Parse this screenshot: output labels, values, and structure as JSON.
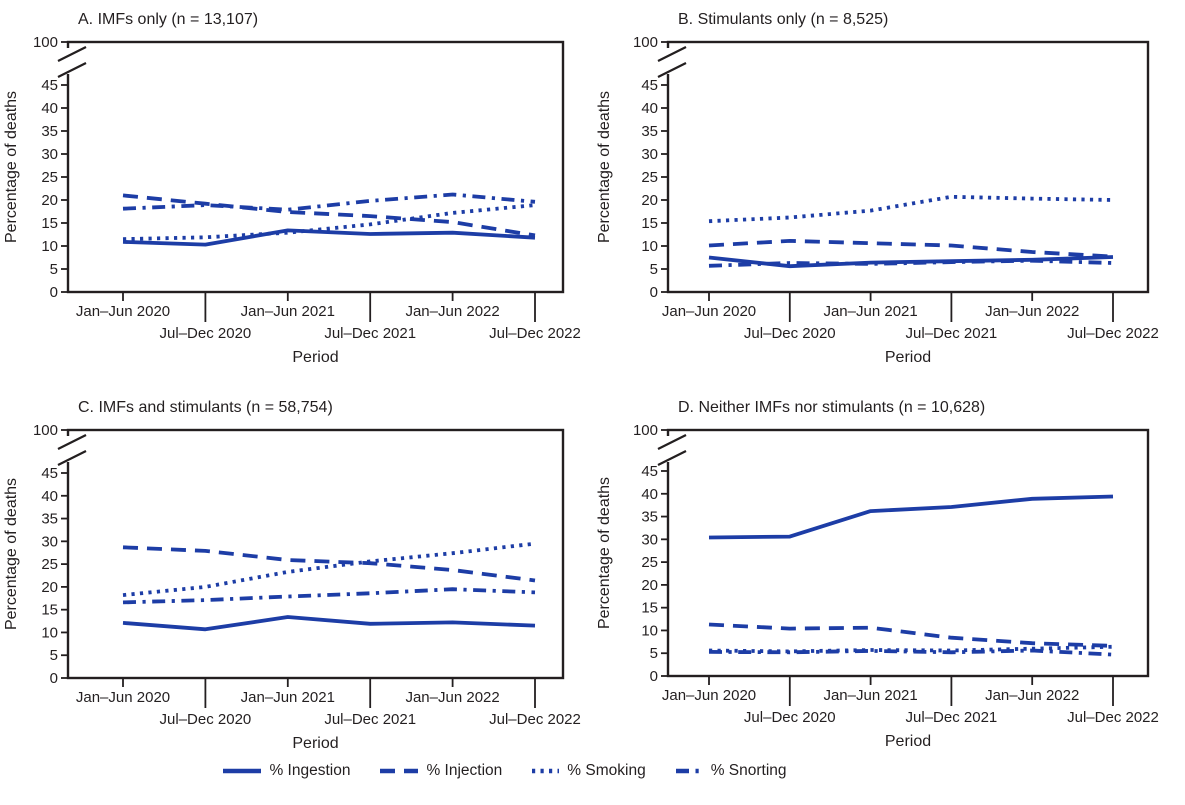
{
  "figure": {
    "description": "Four-panel line chart figure",
    "x_axis_label": "Period",
    "y_axis_label": "Percentage of deaths",
    "x_categories": [
      "Jan–Jun 2020",
      "Jul–Dec 2020",
      "Jan–Jun 2021",
      "Jul–Dec 2021",
      "Jan–Jun 2022",
      "Jul–Dec 2022"
    ],
    "y_ticks": [
      0,
      5,
      10,
      15,
      20,
      25,
      30,
      35,
      40,
      45
    ],
    "y_top_tick": "100",
    "y_axis_break": true
  },
  "chart_data": [
    {
      "type": "line",
      "title": "A. IMFs only (n = 13,107)",
      "xlabel": "Period",
      "ylabel": "Percentage of deaths",
      "x_categories": [
        "Jan–Jun 2020",
        "Jul–Dec 2020",
        "Jan–Jun 2021",
        "Jul–Dec 2021",
        "Jan–Jun 2022",
        "Jul–Dec 2022"
      ],
      "y_ticks": [
        0,
        5,
        10,
        15,
        20,
        25,
        30,
        35,
        40,
        45
      ],
      "y_top_tick": "100",
      "y_axis_break": true,
      "ylim": [
        0,
        100
      ],
      "series": [
        {
          "name": "% Ingestion",
          "style": "solid",
          "values": [
            10.9,
            10.3,
            13.4,
            12.6,
            12.9,
            11.8
          ]
        },
        {
          "name": "% Injection",
          "style": "dashed",
          "values": [
            21.0,
            19.2,
            17.4,
            16.5,
            15.2,
            12.3
          ]
        },
        {
          "name": "% Smoking",
          "style": "dotted",
          "values": [
            11.5,
            11.9,
            12.9,
            14.7,
            17.2,
            18.9
          ]
        },
        {
          "name": "% Snorting",
          "style": "dashdot",
          "values": [
            18.1,
            18.9,
            17.9,
            19.8,
            21.2,
            19.6
          ]
        }
      ]
    },
    {
      "type": "line",
      "title": "B. Stimulants only (n = 8,525)",
      "xlabel": "Period",
      "ylabel": "Percentage of deaths",
      "x_categories": [
        "Jan–Jun 2020",
        "Jul–Dec 2020",
        "Jan–Jun 2021",
        "Jul–Dec 2021",
        "Jan–Jun 2022",
        "Jul–Dec 2022"
      ],
      "y_ticks": [
        0,
        5,
        10,
        15,
        20,
        25,
        30,
        35,
        40,
        45
      ],
      "y_top_tick": "100",
      "y_axis_break": true,
      "ylim": [
        0,
        100
      ],
      "series": [
        {
          "name": "% Ingestion",
          "style": "solid",
          "values": [
            7.5,
            5.6,
            6.4,
            6.7,
            7.0,
            7.6
          ]
        },
        {
          "name": "% Injection",
          "style": "dashed",
          "values": [
            10.1,
            11.1,
            10.6,
            10.1,
            8.7,
            7.7
          ]
        },
        {
          "name": "% Smoking",
          "style": "dotted",
          "values": [
            15.4,
            16.2,
            17.7,
            20.7,
            20.3,
            20.0
          ]
        },
        {
          "name": "% Snorting",
          "style": "dashdot",
          "values": [
            5.7,
            6.3,
            6.1,
            6.5,
            6.8,
            6.3
          ]
        }
      ]
    },
    {
      "type": "line",
      "title": "C. IMFs and stimulants (n = 58,754)",
      "xlabel": "Period",
      "ylabel": "Percentage of deaths",
      "x_categories": [
        "Jan–Jun 2020",
        "Jul–Dec 2020",
        "Jan–Jun 2021",
        "Jul–Dec 2021",
        "Jan–Jun 2022",
        "Jul–Dec 2022"
      ],
      "y_ticks": [
        0,
        5,
        10,
        15,
        20,
        25,
        30,
        35,
        40,
        45
      ],
      "y_top_tick": "100",
      "y_axis_break": true,
      "ylim": [
        0,
        100
      ],
      "series": [
        {
          "name": "% Ingestion",
          "style": "solid",
          "values": [
            12.1,
            10.7,
            13.4,
            11.9,
            12.2,
            11.5
          ]
        },
        {
          "name": "% Injection",
          "style": "dashed",
          "values": [
            28.7,
            27.9,
            25.9,
            25.2,
            23.7,
            21.4
          ]
        },
        {
          "name": "% Smoking",
          "style": "dotted",
          "values": [
            18.2,
            20.0,
            23.3,
            25.6,
            27.4,
            29.5
          ]
        },
        {
          "name": "% Snorting",
          "style": "dashdot",
          "values": [
            16.6,
            17.1,
            17.9,
            18.6,
            19.5,
            18.8
          ]
        }
      ]
    },
    {
      "type": "line",
      "title": "D. Neither IMFs nor stimulants (n = 10,628)",
      "xlabel": "Period",
      "ylabel": "Percentage of deaths",
      "x_categories": [
        "Jan–Jun 2020",
        "Jul–Dec 2020",
        "Jan–Jun 2021",
        "Jul–Dec 2021",
        "Jan–Jun 2022",
        "Jul–Dec 2022"
      ],
      "y_ticks": [
        0,
        5,
        10,
        15,
        20,
        25,
        30,
        35,
        40,
        45
      ],
      "y_top_tick": "100",
      "y_axis_break": true,
      "ylim": [
        0,
        100
      ],
      "series": [
        {
          "name": "% Ingestion",
          "style": "solid",
          "values": [
            30.4,
            30.6,
            36.2,
            37.1,
            38.9,
            39.4
          ]
        },
        {
          "name": "% Injection",
          "style": "dashed",
          "values": [
            11.3,
            10.4,
            10.6,
            8.4,
            7.2,
            6.6
          ]
        },
        {
          "name": "% Smoking",
          "style": "dotted",
          "values": [
            5.6,
            5.4,
            5.7,
            5.6,
            6.0,
            6.4
          ]
        },
        {
          "name": "% Snorting",
          "style": "dashdot",
          "values": [
            5.3,
            5.2,
            5.5,
            5.2,
            5.6,
            4.7
          ]
        }
      ]
    }
  ],
  "legend": {
    "items": [
      {
        "label": "% Ingestion",
        "style": "solid"
      },
      {
        "label": "% Injection",
        "style": "dashed"
      },
      {
        "label": "% Smoking",
        "style": "dotted"
      },
      {
        "label": "% Snorting",
        "style": "dashdot"
      }
    ]
  },
  "colors": {
    "line_blue": "#1d3da6",
    "axis": "#231f20",
    "text": "#231f20",
    "background": "#ffffff"
  }
}
